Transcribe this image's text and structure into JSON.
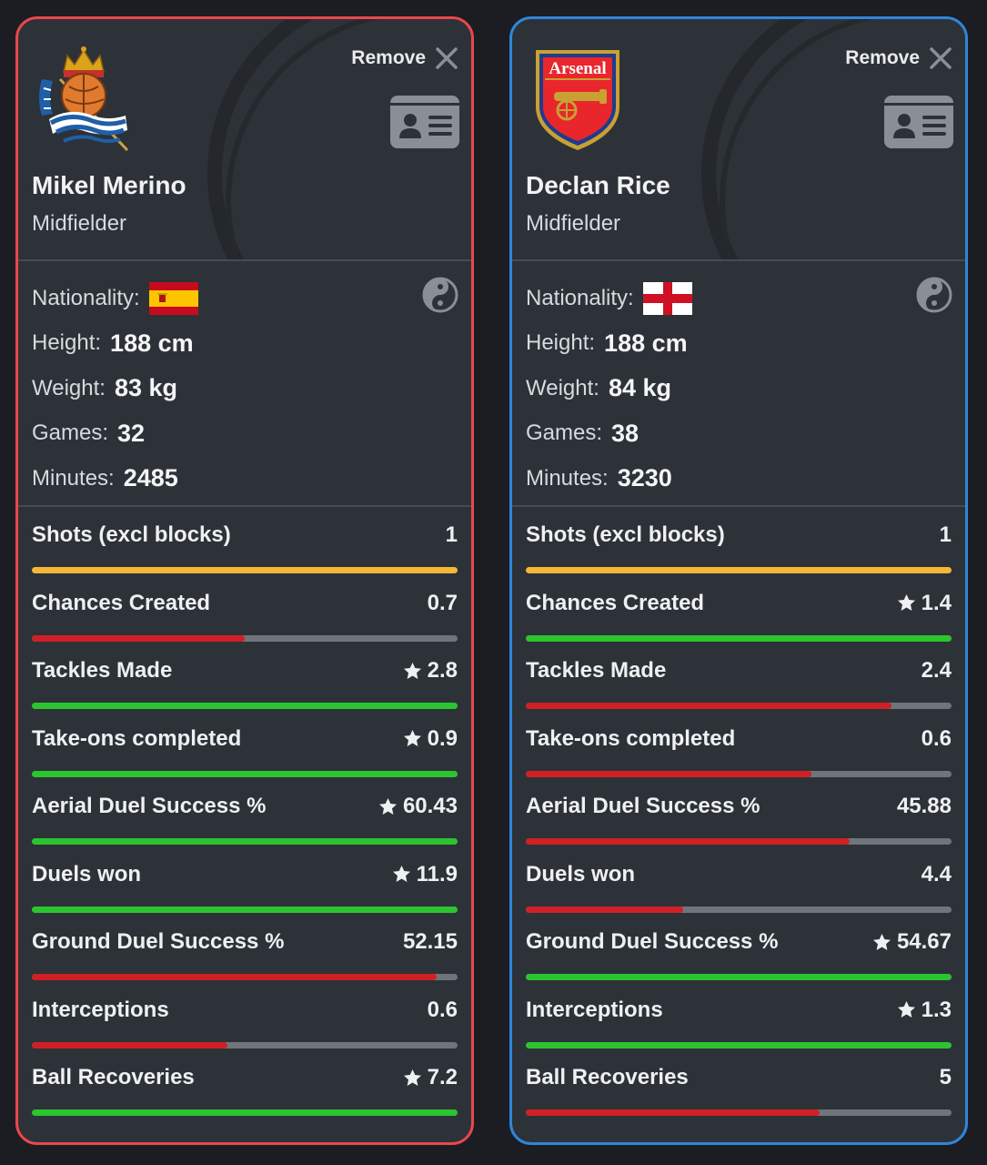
{
  "colors": {
    "good": "#2bc52f",
    "bad": "#d02025",
    "neutral": "#f6b736",
    "track": "#70757c",
    "left_border": "#e8484c",
    "right_border": "#2f86d8"
  },
  "players": [
    {
      "club_crest_icon": "real-sociedad-crest-icon",
      "remove_label": "Remove",
      "name": "Mikel Merino",
      "position": "Midfielder",
      "nationality_label": "Nationality:",
      "flag_icon": "spain-flag-icon",
      "height_label": "Height:",
      "height": "188 cm",
      "weight_label": "Weight:",
      "weight": "83 kg",
      "games_label": "Games:",
      "games": "32",
      "minutes_label": "Minutes:",
      "minutes": "2485",
      "stats": [
        {
          "label": "Shots (excl blocks)",
          "value": "1",
          "star": false,
          "fill": 1.0,
          "status": "neutral"
        },
        {
          "label": "Chances Created",
          "value": "0.7",
          "star": false,
          "fill": 0.5,
          "status": "bad"
        },
        {
          "label": "Tackles Made",
          "value": "2.8",
          "star": true,
          "fill": 1.0,
          "status": "good"
        },
        {
          "label": "Take-ons completed",
          "value": "0.9",
          "star": true,
          "fill": 1.0,
          "status": "good"
        },
        {
          "label": "Aerial Duel Success %",
          "value": "60.43",
          "star": true,
          "fill": 1.0,
          "status": "good"
        },
        {
          "label": "Duels won",
          "value": "11.9",
          "star": true,
          "fill": 1.0,
          "status": "good"
        },
        {
          "label": "Ground Duel Success %",
          "value": "52.15",
          "star": false,
          "fill": 0.95,
          "status": "bad"
        },
        {
          "label": "Interceptions",
          "value": "0.6",
          "star": false,
          "fill": 0.46,
          "status": "bad"
        },
        {
          "label": "Ball Recoveries",
          "value": "7.2",
          "star": true,
          "fill": 1.0,
          "status": "good"
        }
      ]
    },
    {
      "club_crest_icon": "arsenal-crest-icon",
      "crest_text": "Arsenal",
      "remove_label": "Remove",
      "name": "Declan Rice",
      "position": "Midfielder",
      "nationality_label": "Nationality:",
      "flag_icon": "england-flag-icon",
      "height_label": "Height:",
      "height": "188 cm",
      "weight_label": "Weight:",
      "weight": "84 kg",
      "games_label": "Games:",
      "games": "38",
      "minutes_label": "Minutes:",
      "minutes": "3230",
      "stats": [
        {
          "label": "Shots (excl blocks)",
          "value": "1",
          "star": false,
          "fill": 1.0,
          "status": "neutral"
        },
        {
          "label": "Chances Created",
          "value": "1.4",
          "star": true,
          "fill": 1.0,
          "status": "good"
        },
        {
          "label": "Tackles Made",
          "value": "2.4",
          "star": false,
          "fill": 0.86,
          "status": "bad"
        },
        {
          "label": "Take-ons completed",
          "value": "0.6",
          "star": false,
          "fill": 0.67,
          "status": "bad"
        },
        {
          "label": "Aerial Duel Success %",
          "value": "45.88",
          "star": false,
          "fill": 0.76,
          "status": "bad"
        },
        {
          "label": "Duels won",
          "value": "4.4",
          "star": false,
          "fill": 0.37,
          "status": "bad"
        },
        {
          "label": "Ground Duel Success %",
          "value": "54.67",
          "star": true,
          "fill": 1.0,
          "status": "good"
        },
        {
          "label": "Interceptions",
          "value": "1.3",
          "star": true,
          "fill": 1.0,
          "status": "good"
        },
        {
          "label": "Ball Recoveries",
          "value": "5",
          "star": false,
          "fill": 0.69,
          "status": "bad"
        }
      ]
    }
  ]
}
